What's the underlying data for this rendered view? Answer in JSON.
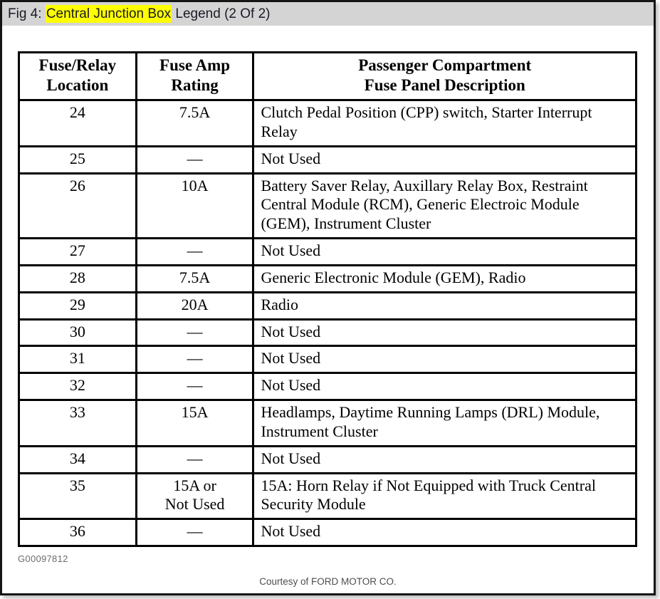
{
  "header": {
    "prefix": "Fig 4: ",
    "highlight": "Central Junction Box",
    "suffix": " Legend (2 Of 2)"
  },
  "table": {
    "headers": [
      "Fuse/Relay\nLocation",
      "Fuse Amp\nRating",
      "Passenger Compartment\nFuse Panel Description"
    ],
    "rows": [
      {
        "location": "24",
        "rating": "7.5A",
        "description": "Clutch Pedal Position (CPP) switch, Starter Interrupt Relay"
      },
      {
        "location": "25",
        "rating": "—",
        "description": "Not Used"
      },
      {
        "location": "26",
        "rating": "10A",
        "description": "Battery Saver Relay, Auxillary Relay Box, Restraint Central Module (RCM), Generic Electroic Module (GEM), Instrument Cluster"
      },
      {
        "location": "27",
        "rating": "—",
        "description": "Not Used"
      },
      {
        "location": "28",
        "rating": "7.5A",
        "description": "Generic Electronic Module (GEM), Radio"
      },
      {
        "location": "29",
        "rating": "20A",
        "description": "Radio"
      },
      {
        "location": "30",
        "rating": "—",
        "description": "Not Used"
      },
      {
        "location": "31",
        "rating": "—",
        "description": "Not Used"
      },
      {
        "location": "32",
        "rating": "—",
        "description": "Not Used"
      },
      {
        "location": "33",
        "rating": "15A",
        "description": "Headlamps, Daytime Running Lamps (DRL) Module, Instrument Cluster"
      },
      {
        "location": "34",
        "rating": "—",
        "description": "Not Used"
      },
      {
        "location": "35",
        "rating": "15A or\nNot Used",
        "description": "15A: Horn Relay if Not Equipped with Truck Central Security Module"
      },
      {
        "location": "36",
        "rating": "—",
        "description": "Not Used"
      }
    ]
  },
  "footer": {
    "figure_id": "G00097812",
    "courtesy": "Courtesy of FORD MOTOR CO."
  },
  "colors": {
    "highlight": "#ffff00",
    "title_bar_bg": "#d4d4d4",
    "table_border": "#000000",
    "frame_border": "#151515"
  }
}
